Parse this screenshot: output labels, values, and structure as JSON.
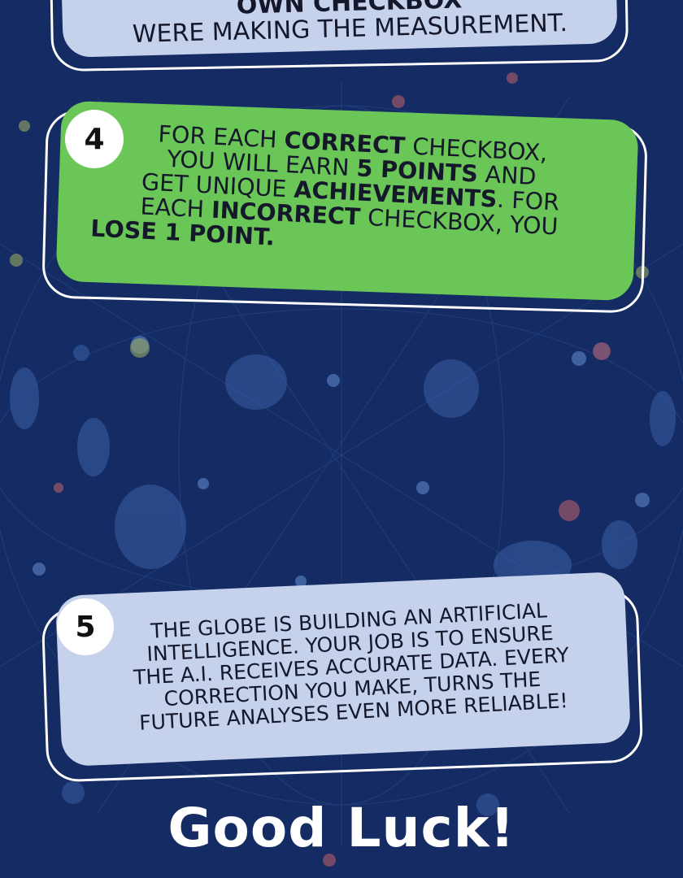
{
  "step3_partial": {
    "line1": "OWN CHECKBOX",
    "line2": "WERE MAKING THE MEASUREMENT."
  },
  "step4": {
    "number": "4",
    "t1": "FOR EACH ",
    "b1": "CORRECT",
    "t2": " CHECKBOX,",
    "t3": "YOU WILL EARN ",
    "b2": "5 POINTS",
    "t4": " AND",
    "t5": "GET UNIQUE ",
    "b3": "ACHIEVEMENTS",
    "t6": ". FOR",
    "t7": "EACH ",
    "b4": "INCORRECT",
    "t8": " CHECKBOX, YOU",
    "b5": "LOSE 1 POINT."
  },
  "step5": {
    "number": "5",
    "line1": "THE GLOBE IS BUILDING AN ARTIFICIAL",
    "line2": "INTELLIGENCE. YOUR JOB IS TO ENSURE",
    "line3": "THE A.I. RECEIVES ACCURATE DATA. EVERY",
    "line4": "CORRECTION YOU MAKE,  TURNS THE",
    "line5": "FUTURE ANALYSES EVEN MORE RELIABLE!"
  },
  "footer": {
    "title": "Good Luck!"
  },
  "colors": {
    "background": "#142c63",
    "card_blue": "#c6d1ec",
    "card_green": "#6bc658"
  }
}
